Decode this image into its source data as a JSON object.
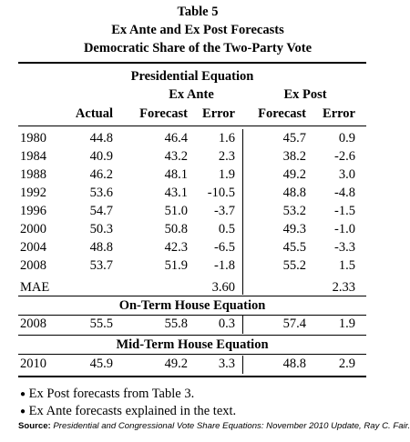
{
  "title": {
    "line1": "Table 5",
    "line2": "Ex Ante and Ex Post Forecasts",
    "line3": "Democratic Share of the Two-Party Vote"
  },
  "headers": {
    "presidential": "Presidential Equation",
    "ex_ante": "Ex Ante",
    "ex_post": "Ex Post",
    "actual": "Actual",
    "forecast_ante": "Forecast",
    "error_ante": "Error",
    "forecast_post": "Forecast",
    "error_post": "Error"
  },
  "presidential_rows": [
    {
      "year": "1980",
      "actual": "44.8",
      "fa": "46.4",
      "ea": "1.6",
      "fp": "45.7",
      "ep": "0.9"
    },
    {
      "year": "1984",
      "actual": "40.9",
      "fa": "43.2",
      "ea": "2.3",
      "fp": "38.2",
      "ep": "-2.6"
    },
    {
      "year": "1988",
      "actual": "46.2",
      "fa": "48.1",
      "ea": "1.9",
      "fp": "49.2",
      "ep": "3.0"
    },
    {
      "year": "1992",
      "actual": "53.6",
      "fa": "43.1",
      "ea": "-10.5",
      "fp": "48.8",
      "ep": "-4.8"
    },
    {
      "year": "1996",
      "actual": "54.7",
      "fa": "51.0",
      "ea": "-3.7",
      "fp": "53.2",
      "ep": "-1.5"
    },
    {
      "year": "2000",
      "actual": "50.3",
      "fa": "50.8",
      "ea": "0.5",
      "fp": "49.3",
      "ep": "-1.0"
    },
    {
      "year": "2004",
      "actual": "48.8",
      "fa": "42.3",
      "ea": "-6.5",
      "fp": "45.5",
      "ep": "-3.3"
    },
    {
      "year": "2008",
      "actual": "53.7",
      "fa": "51.9",
      "ea": "-1.8",
      "fp": "55.2",
      "ep": "1.5"
    }
  ],
  "mae": {
    "label": "MAE",
    "ante": "3.60",
    "post": "2.33"
  },
  "on_term": {
    "header": "On-Term House Equation",
    "row": {
      "year": "2008",
      "actual": "55.5",
      "fa": "55.8",
      "ea": "0.3",
      "fp": "57.4",
      "ep": "1.9"
    }
  },
  "mid_term": {
    "header": "Mid-Term House Equation",
    "row": {
      "year": "2010",
      "actual": "45.9",
      "fa": "49.2",
      "ea": "3.3",
      "fp": "48.8",
      "ep": "2.9"
    }
  },
  "notes": {
    "bullet": "●",
    "note1": "Ex Post forecasts from Table 3.",
    "note2": "Ex Ante forecasts explained in the text."
  },
  "source": {
    "label": "Source:",
    "text": "Presidential and Congressional Vote Share Equations:  November 2010 Update, Ray C. Fair."
  }
}
